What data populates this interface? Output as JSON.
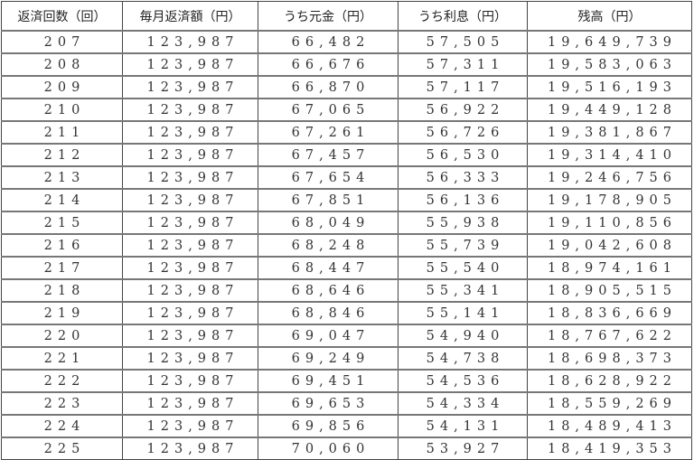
{
  "headers": [
    "返済回数（回）",
    "毎月返済額（円）",
    "うち元金（円）",
    "うち利息（円）",
    "残高（円）"
  ],
  "rows": [
    [
      "207",
      "123,987",
      "66,482",
      "57,505",
      "19,649,739"
    ],
    [
      "208",
      "123,987",
      "66,676",
      "57,311",
      "19,583,063"
    ],
    [
      "209",
      "123,987",
      "66,870",
      "57,117",
      "19,516,193"
    ],
    [
      "210",
      "123,987",
      "67,065",
      "56,922",
      "19,449,128"
    ],
    [
      "211",
      "123,987",
      "67,261",
      "56,726",
      "19,381,867"
    ],
    [
      "212",
      "123,987",
      "67,457",
      "56,530",
      "19,314,410"
    ],
    [
      "213",
      "123,987",
      "67,654",
      "56,333",
      "19,246,756"
    ],
    [
      "214",
      "123,987",
      "67,851",
      "56,136",
      "19,178,905"
    ],
    [
      "215",
      "123,987",
      "68,049",
      "55,938",
      "19,110,856"
    ],
    [
      "216",
      "123,987",
      "68,248",
      "55,739",
      "19,042,608"
    ],
    [
      "217",
      "123,987",
      "68,447",
      "55,540",
      "18,974,161"
    ],
    [
      "218",
      "123,987",
      "68,646",
      "55,341",
      "18,905,515"
    ],
    [
      "219",
      "123,987",
      "68,846",
      "55,141",
      "18,836,669"
    ],
    [
      "220",
      "123,987",
      "69,047",
      "54,940",
      "18,767,622"
    ],
    [
      "221",
      "123,987",
      "69,249",
      "54,738",
      "18,698,373"
    ],
    [
      "222",
      "123,987",
      "69,451",
      "54,536",
      "18,628,922"
    ],
    [
      "223",
      "123,987",
      "69,653",
      "54,334",
      "18,559,269"
    ],
    [
      "224",
      "123,987",
      "69,856",
      "54,131",
      "18,489,413"
    ],
    [
      "225",
      "123,987",
      "70,060",
      "53,927",
      "18,419,353"
    ]
  ]
}
